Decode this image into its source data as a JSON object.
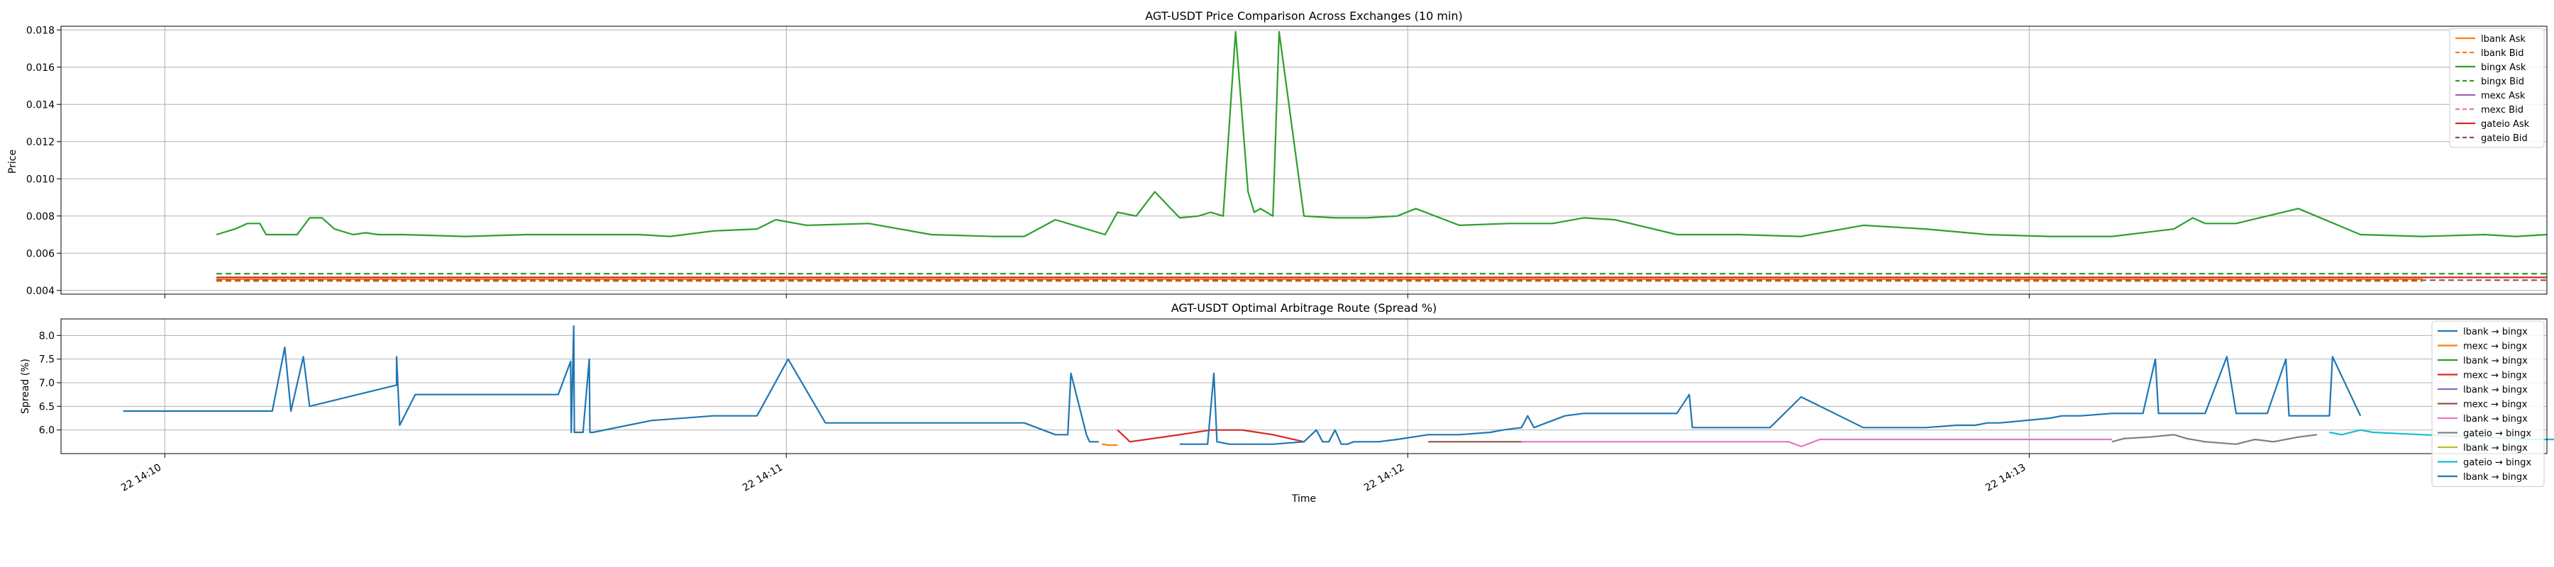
{
  "chart_data": [
    {
      "type": "line",
      "title": "AGT-USDT Price Comparison Across Exchanges (10 min)",
      "xlabel": "",
      "ylabel": "Price",
      "xlim": [
        14.15,
        14.55
      ],
      "ylim": [
        0.0038,
        0.0182
      ],
      "y_ticks": [
        0.004,
        0.006,
        0.008,
        0.01,
        0.012,
        0.014,
        0.016,
        0.018
      ],
      "y_tick_labels": [
        "0.004",
        "0.006",
        "0.008",
        "0.010",
        "0.012",
        "0.014",
        "0.016",
        "0.018"
      ],
      "x_ticks": [
        14.1667,
        14.2667,
        14.3667,
        14.4667,
        14.5667
      ],
      "grid": true,
      "legend_position": "upper right",
      "series": [
        {
          "name": "lbank Ask",
          "color": "#ff7f0e",
          "dash": "solid",
          "x": [
            14.175,
            14.188,
            14.3,
            14.42,
            14.53
          ],
          "y": [
            0.0046,
            0.0046,
            0.0046,
            0.0046,
            0.0046
          ]
        },
        {
          "name": "lbank Bid",
          "color": "#ff7f0e",
          "dash": "dashed",
          "x": [
            14.175,
            14.3,
            14.53
          ],
          "y": [
            0.0045,
            0.0045,
            0.0045
          ]
        },
        {
          "name": "bingx Ask",
          "color": "#2ca02c",
          "dash": "solid",
          "x": [
            14.175,
            14.178,
            14.18,
            14.182,
            14.183,
            14.185,
            14.186,
            14.188,
            14.19,
            14.192,
            14.194,
            14.197,
            14.199,
            14.201,
            14.205,
            14.215,
            14.225,
            14.235,
            14.243,
            14.248,
            14.255,
            14.262,
            14.265,
            14.27,
            14.28,
            14.29,
            14.3,
            14.305,
            14.31,
            14.315,
            14.318,
            14.32,
            14.323,
            14.326,
            14.33,
            14.333,
            14.335,
            14.337,
            14.339,
            14.341,
            14.342,
            14.343,
            14.345,
            14.346,
            14.35,
            14.355,
            14.36,
            14.365,
            14.368,
            14.375,
            14.383,
            14.39,
            14.395,
            14.4,
            14.41,
            14.42,
            14.43,
            14.44,
            14.45,
            14.46,
            14.47,
            14.48,
            14.49,
            14.493,
            14.495,
            14.5,
            14.51,
            14.52,
            14.53,
            14.54,
            14.545,
            14.55
          ],
          "y": [
            0.007,
            0.0073,
            0.0076,
            0.0076,
            0.007,
            0.007,
            0.007,
            0.007,
            0.0079,
            0.0079,
            0.0073,
            0.007,
            0.0071,
            0.007,
            0.007,
            0.0069,
            0.007,
            0.007,
            0.007,
            0.0069,
            0.0072,
            0.0073,
            0.0078,
            0.0075,
            0.0076,
            0.007,
            0.0069,
            0.0069,
            0.0078,
            0.0073,
            0.007,
            0.0082,
            0.008,
            0.0093,
            0.0079,
            0.008,
            0.0082,
            0.008,
            0.0179,
            0.0093,
            0.0082,
            0.0084,
            0.008,
            0.0179,
            0.008,
            0.0079,
            0.0079,
            0.008,
            0.0084,
            0.0075,
            0.0076,
            0.0076,
            0.0079,
            0.0078,
            0.007,
            0.007,
            0.0069,
            0.0075,
            0.0073,
            0.007,
            0.0069,
            0.0069,
            0.0073,
            0.0079,
            0.0076,
            0.0076,
            0.0084,
            0.007,
            0.0069,
            0.007,
            0.0069,
            0.007
          ]
        },
        {
          "name": "bingx Bid",
          "color": "#2ca02c",
          "dash": "dashed",
          "x": [
            14.175,
            14.3,
            14.55
          ],
          "y": [
            0.0049,
            0.0049,
            0.0049
          ]
        },
        {
          "name": "mexc Ask",
          "color": "#9467bd",
          "dash": "solid",
          "x": [],
          "y": []
        },
        {
          "name": "mexc Bid",
          "color": "#e377c2",
          "dash": "dashed",
          "x": [],
          "y": []
        },
        {
          "name": "gateio Ask",
          "color": "#d62728",
          "dash": "solid",
          "x": [
            14.175,
            14.3,
            14.42,
            14.55
          ],
          "y": [
            0.0047,
            0.0047,
            0.0047,
            0.0047
          ]
        },
        {
          "name": "gateio Bid",
          "color": "#8c564b",
          "dash": "dashed",
          "x": [
            14.175,
            14.3,
            14.42,
            14.55
          ],
          "y": [
            0.00455,
            0.00455,
            0.00455,
            0.00455
          ]
        }
      ]
    },
    {
      "type": "line",
      "title": "AGT-USDT Optimal Arbitrage Route (Spread %)",
      "xlabel": "Time",
      "ylabel": "Spread (%)",
      "xlim": [
        14.15,
        14.55
      ],
      "ylim": [
        5.5,
        8.35
      ],
      "y_ticks": [
        6.0,
        6.5,
        7.0,
        7.5,
        8.0
      ],
      "y_tick_labels": [
        "6.0",
        "6.5",
        "7.0",
        "7.5",
        "8.0"
      ],
      "x_ticks": [
        14.1667,
        14.2667,
        14.3667,
        14.4667,
        14.5667
      ],
      "x_tick_labels": [
        "22 14:10",
        "22 14:11",
        "22 14:12",
        "22 14:13",
        "22 14:14"
      ],
      "grid": true,
      "legend_position": "upper right",
      "series": [
        {
          "name": "lbank → bingx",
          "color": "#1f77b4",
          "x": [
            14.16,
            14.184,
            14.186,
            14.187,
            14.189,
            14.19,
            14.204,
            14.204,
            14.2045,
            14.207,
            14.23,
            14.232,
            14.2321,
            14.2325,
            14.2326,
            14.234,
            14.235,
            14.2351,
            14.2355,
            14.2356,
            14.245,
            14.255,
            14.262,
            14.267,
            14.273,
            14.275,
            14.295,
            14.305,
            14.31,
            14.312,
            14.3125,
            14.315,
            14.3155,
            14.317
          ],
          "y": [
            6.4,
            6.4,
            7.75,
            6.4,
            7.55,
            6.5,
            6.95,
            7.55,
            6.1,
            6.75,
            6.75,
            7.45,
            5.95,
            8.2,
            5.95,
            5.95,
            7.5,
            5.95,
            5.95,
            5.95,
            6.2,
            6.3,
            6.3,
            7.5,
            6.15,
            6.15,
            6.15,
            6.15,
            5.9,
            5.9,
            7.2,
            5.9,
            5.75,
            5.75
          ]
        },
        {
          "name": "mexc → bingx",
          "color": "#ff7f0e",
          "x": [
            14.3175,
            14.3185,
            14.32
          ],
          "y": [
            5.7,
            5.68,
            5.68
          ]
        },
        {
          "name": "lbank → bingx",
          "color": "#2ca02c",
          "x": [],
          "y": []
        },
        {
          "name": "mexc → bingx",
          "color": "#d62728",
          "x": [
            14.32,
            14.322,
            14.33,
            14.335,
            14.34,
            14.345,
            14.35
          ],
          "y": [
            6.0,
            5.75,
            5.9,
            6.0,
            6.0,
            5.9,
            5.75
          ]
        },
        {
          "name": "lbank → bingx",
          "color": "#9467bd",
          "x": [],
          "y": []
        },
        {
          "name": "mexc → bingx",
          "color": "#8c564b",
          "x": [
            14.37,
            14.385
          ],
          "y": [
            5.75,
            5.75
          ]
        },
        {
          "name": "lbank → bingx",
          "color": "#e377c2",
          "x": [
            14.385,
            14.4,
            14.41,
            14.42,
            14.428,
            14.43,
            14.433,
            14.44,
            14.46,
            14.47,
            14.48
          ],
          "y": [
            5.75,
            5.75,
            5.75,
            5.75,
            5.75,
            5.65,
            5.8,
            5.8,
            5.8,
            5.8,
            5.8
          ]
        },
        {
          "name": "gateio → bingx",
          "color": "#7f7f7f",
          "x": [
            14.48,
            14.482,
            14.486,
            14.49,
            14.492,
            14.495,
            14.5,
            14.503,
            14.506,
            14.51,
            14.513
          ],
          "y": [
            5.75,
            5.82,
            5.85,
            5.9,
            5.82,
            5.75,
            5.7,
            5.8,
            5.75,
            5.85,
            5.9
          ]
        },
        {
          "name": "lbank → bingx",
          "color": "#bcbd22",
          "x": [],
          "y": []
        },
        {
          "name": "gateio → bingx",
          "color": "#17becf",
          "x": [
            14.515,
            14.517,
            14.52,
            14.522,
            14.53,
            14.54,
            14.548,
            14.56,
            14.578
          ],
          "y": [
            5.95,
            5.9,
            6.0,
            5.95,
            5.9,
            5.85,
            5.8,
            5.8,
            5.8
          ]
        },
        {
          "name": "lbank → bingx",
          "color": "#1f77b4",
          "x": [
            14.33,
            14.3345,
            14.3355,
            14.336,
            14.338,
            14.34,
            14.345,
            14.35,
            14.352,
            14.353,
            14.354,
            14.355,
            14.356,
            14.357,
            14.358,
            14.36,
            14.362,
            14.365,
            14.37,
            14.375,
            14.38,
            14.382,
            14.385,
            14.386,
            14.387,
            14.392,
            14.395,
            14.41,
            14.412,
            14.4125,
            14.415,
            14.425,
            14.43,
            14.44,
            14.445,
            14.45,
            14.455,
            14.458,
            14.46,
            14.462,
            14.47,
            14.472,
            14.475,
            14.48,
            14.485,
            14.487,
            14.4875,
            14.49,
            14.495,
            14.4985,
            14.5,
            14.502,
            14.5035,
            14.505,
            14.508,
            14.5085,
            14.51,
            14.515,
            14.5155,
            14.52
          ],
          "y": [
            5.7,
            5.7,
            7.2,
            5.75,
            5.7,
            5.7,
            5.7,
            5.75,
            6.0,
            5.75,
            5.75,
            6.0,
            5.7,
            5.7,
            5.75,
            5.75,
            5.75,
            5.8,
            5.9,
            5.9,
            5.95,
            6.0,
            6.05,
            6.3,
            6.05,
            6.3,
            6.35,
            6.35,
            6.75,
            6.05,
            6.05,
            6.05,
            6.7,
            6.05,
            6.05,
            6.05,
            6.1,
            6.1,
            6.15,
            6.15,
            6.25,
            6.3,
            6.3,
            6.35,
            6.35,
            7.5,
            6.35,
            6.35,
            6.35,
            7.55,
            6.35,
            6.35,
            6.35,
            6.35,
            7.5,
            6.3,
            6.3,
            6.3,
            7.55,
            6.3
          ]
        }
      ]
    }
  ]
}
